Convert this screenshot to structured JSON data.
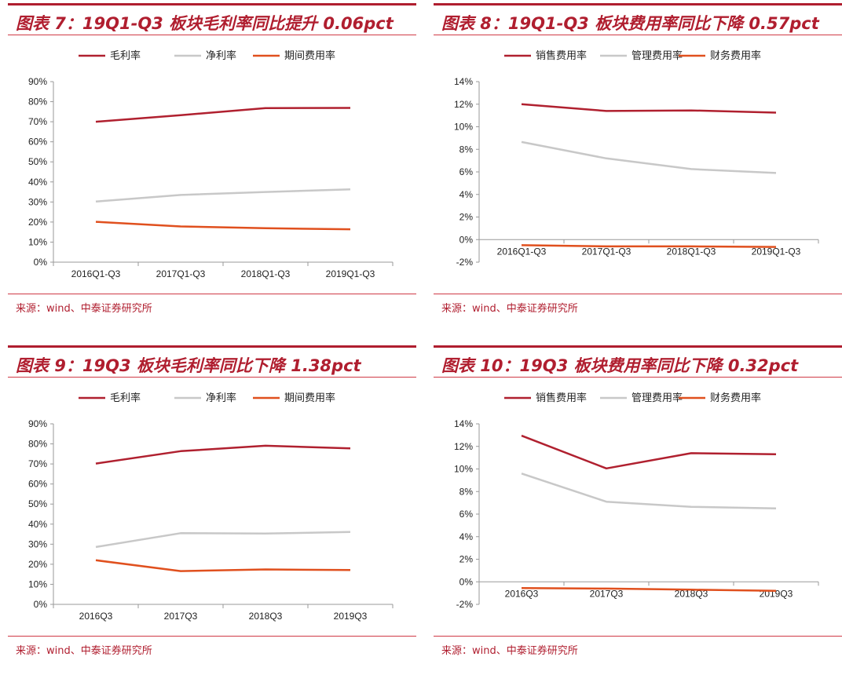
{
  "colors": {
    "accent": "#b01e2f",
    "series1": "#b0202f",
    "series2": "#c8c8c8",
    "series3": "#e0501e"
  },
  "panels": [
    {
      "title": "图表 7：19Q1-Q3 板块毛利率同比提升 0.06pct",
      "source": "来源：wind、中泰证券研究所"
    },
    {
      "title": "图表 8：19Q1-Q3 板块费用率同比下降 0.57pct",
      "source": "来源：wind、中泰证券研究所"
    },
    {
      "title": "图表 9：19Q3 板块毛利率同比下降 1.38pct",
      "source": "来源：wind、中泰证券研究所"
    },
    {
      "title": "图表 10：19Q3 板块费用率同比下降 0.32pct",
      "source": "来源：wind、中泰证券研究所"
    }
  ],
  "chart_data": [
    {
      "type": "line",
      "categories": [
        "2016Q1-Q3",
        "2017Q1-Q3",
        "2018Q1-Q3",
        "2019Q1-Q3"
      ],
      "yticks": [
        "0%",
        "10%",
        "20%",
        "30%",
        "40%",
        "50%",
        "60%",
        "70%",
        "80%",
        "90%"
      ],
      "ylim": [
        0,
        90
      ],
      "legend": "top-center",
      "grid": false,
      "series": [
        {
          "name": "毛利率",
          "color": "#b0202f",
          "values": [
            70.0,
            73.3,
            76.8,
            76.9
          ]
        },
        {
          "name": "净利率",
          "color": "#c8c8c8",
          "values": [
            30.2,
            33.5,
            35.0,
            36.3
          ]
        },
        {
          "name": "期间费用率",
          "color": "#e0501e",
          "values": [
            20.1,
            17.8,
            16.9,
            16.4
          ]
        }
      ]
    },
    {
      "type": "line",
      "categories": [
        "2016Q1-Q3",
        "2017Q1-Q3",
        "2018Q1-Q3",
        "2019Q1-Q3"
      ],
      "yticks": [
        "-2%",
        "0%",
        "2%",
        "4%",
        "6%",
        "8%",
        "10%",
        "12%",
        "14%"
      ],
      "ylim": [
        -2,
        14
      ],
      "legend": "top-center",
      "grid": false,
      "series": [
        {
          "name": "销售费用率",
          "color": "#b0202f",
          "values": [
            12.0,
            11.4,
            11.45,
            11.25
          ]
        },
        {
          "name": "管理费用率",
          "color": "#c8c8c8",
          "values": [
            8.65,
            7.2,
            6.25,
            5.9
          ]
        },
        {
          "name": "财务费用率",
          "color": "#e0501e",
          "values": [
            -0.5,
            -0.6,
            -0.6,
            -0.65
          ]
        }
      ]
    },
    {
      "type": "line",
      "categories": [
        "2016Q3",
        "2017Q3",
        "2018Q3",
        "2019Q3"
      ],
      "yticks": [
        "0%",
        "10%",
        "20%",
        "30%",
        "40%",
        "50%",
        "60%",
        "70%",
        "80%",
        "90%"
      ],
      "ylim": [
        0,
        90
      ],
      "legend": "top-center",
      "grid": false,
      "series": [
        {
          "name": "毛利率",
          "color": "#b0202f",
          "values": [
            70.2,
            76.4,
            79.1,
            77.8
          ]
        },
        {
          "name": "净利率",
          "color": "#c8c8c8",
          "values": [
            28.6,
            35.5,
            35.3,
            36.1
          ]
        },
        {
          "name": "期间费用率",
          "color": "#e0501e",
          "values": [
            22.0,
            16.6,
            17.4,
            17.1
          ]
        }
      ]
    },
    {
      "type": "line",
      "categories": [
        "2016Q3",
        "2017Q3",
        "2018Q3",
        "2019Q3"
      ],
      "yticks": [
        "-2%",
        "0%",
        "2%",
        "4%",
        "6%",
        "8%",
        "10%",
        "12%",
        "14%"
      ],
      "ylim": [
        -2,
        14
      ],
      "legend": "top-center",
      "grid": false,
      "series": [
        {
          "name": "销售费用率",
          "color": "#b0202f",
          "values": [
            12.95,
            10.05,
            11.4,
            11.3
          ]
        },
        {
          "name": "管理费用率",
          "color": "#c8c8c8",
          "values": [
            9.6,
            7.1,
            6.65,
            6.5
          ]
        },
        {
          "name": "财务费用率",
          "color": "#e0501e",
          "values": [
            -0.55,
            -0.6,
            -0.7,
            -0.8
          ]
        }
      ]
    }
  ]
}
